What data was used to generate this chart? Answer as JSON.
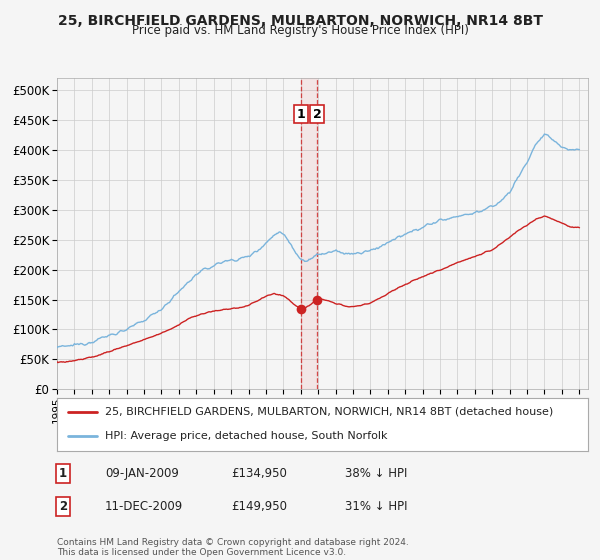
{
  "title": "25, BIRCHFIELD GARDENS, MULBARTON, NORWICH, NR14 8BT",
  "subtitle": "Price paid vs. HM Land Registry's House Price Index (HPI)",
  "legend_entry1": "25, BIRCHFIELD GARDENS, MULBARTON, NORWICH, NR14 8BT (detached house)",
  "legend_entry2": "HPI: Average price, detached house, South Norfolk",
  "annotation1_label": "1",
  "annotation1_date": "09-JAN-2009",
  "annotation1_price": "£134,950",
  "annotation1_hpi": "38% ↓ HPI",
  "annotation2_label": "2",
  "annotation2_date": "11-DEC-2009",
  "annotation2_price": "£149,950",
  "annotation2_hpi": "31% ↓ HPI",
  "copyright": "Contains HM Land Registry data © Crown copyright and database right 2024.\nThis data is licensed under the Open Government Licence v3.0.",
  "sale1_year": 2009.03,
  "sale1_price": 134950,
  "sale2_year": 2009.95,
  "sale2_price": 149950,
  "hpi_color": "#7ab4dc",
  "price_color": "#cc2222",
  "vline_color": "#cc2222",
  "annotation_box_color": "#cc2222",
  "grid_color": "#cccccc",
  "background_color": "#f5f5f5",
  "plot_bg_color": "#f5f5f5",
  "xmin": 1995,
  "xmax": 2025.5,
  "ymin": 0,
  "ymax": 520000,
  "yticks": [
    0,
    50000,
    100000,
    150000,
    200000,
    250000,
    300000,
    350000,
    400000,
    450000,
    500000
  ]
}
